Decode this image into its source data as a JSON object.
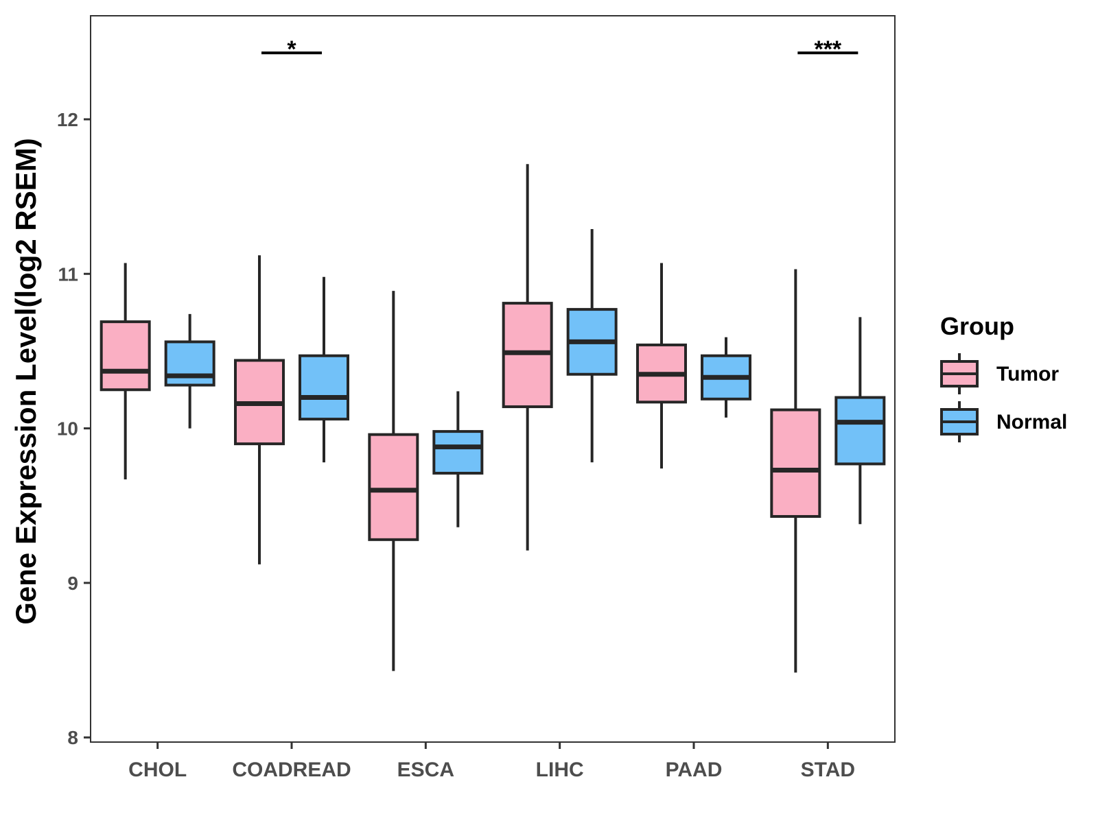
{
  "chart_data": {
    "type": "boxplot",
    "categories": [
      "CHOL",
      "COADREAD",
      "ESCA",
      "LIHC",
      "PAAD",
      "STAD"
    ],
    "xlabel": "",
    "ylabel": "Gene Expression Level(log2 RSEM)",
    "ylim": [
      7.97,
      12.67
    ],
    "yticks": [
      8,
      9,
      10,
      11,
      12
    ],
    "legend": {
      "title": "Group",
      "position": "right",
      "entries": [
        {
          "name": "Tumor",
          "color": "#FAAFC3"
        },
        {
          "name": "Normal",
          "color": "#72C1F8"
        }
      ]
    },
    "series": [
      {
        "name": "Tumor",
        "color": "#FAAFC3",
        "boxes": [
          {
            "min": 9.67,
            "q1": 10.25,
            "median": 10.37,
            "q3": 10.69,
            "max": 11.07
          },
          {
            "min": 9.12,
            "q1": 9.9,
            "median": 10.16,
            "q3": 10.44,
            "max": 11.12
          },
          {
            "min": 8.43,
            "q1": 9.28,
            "median": 9.6,
            "q3": 9.96,
            "max": 10.89
          },
          {
            "min": 9.21,
            "q1": 10.14,
            "median": 10.49,
            "q3": 10.81,
            "max": 11.71
          },
          {
            "min": 9.74,
            "q1": 10.17,
            "median": 10.35,
            "q3": 10.54,
            "max": 11.07
          },
          {
            "min": 8.42,
            "q1": 9.43,
            "median": 9.73,
            "q3": 10.12,
            "max": 11.03
          }
        ]
      },
      {
        "name": "Normal",
        "color": "#72C1F8",
        "boxes": [
          {
            "min": 10.0,
            "q1": 10.28,
            "median": 10.34,
            "q3": 10.56,
            "max": 10.74
          },
          {
            "min": 9.78,
            "q1": 10.06,
            "median": 10.2,
            "q3": 10.47,
            "max": 10.98
          },
          {
            "min": 9.36,
            "q1": 9.71,
            "median": 9.88,
            "q3": 9.98,
            "max": 10.24
          },
          {
            "min": 9.78,
            "q1": 10.35,
            "median": 10.56,
            "q3": 10.77,
            "max": 11.29
          },
          {
            "min": 10.07,
            "q1": 10.19,
            "median": 10.33,
            "q3": 10.47,
            "max": 10.59
          },
          {
            "min": 9.38,
            "q1": 9.77,
            "median": 10.04,
            "q3": 10.2,
            "max": 10.72
          }
        ]
      }
    ],
    "annotations": [
      {
        "category": "COADREAD",
        "label": "*",
        "y": 12.43
      },
      {
        "category": "STAD",
        "label": "***",
        "y": 12.43
      }
    ]
  }
}
